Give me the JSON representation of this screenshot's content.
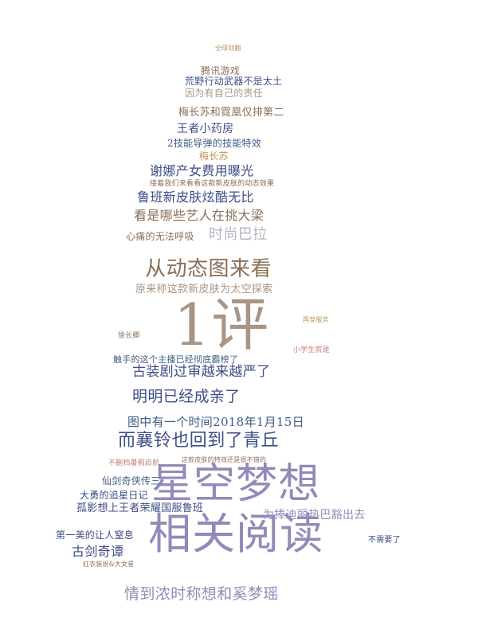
{
  "palette": {
    "gold": "#b8965a",
    "brown": "#8a6f58",
    "taupe": "#a89585",
    "navy": "#3e5c86",
    "indigo": "#3c4e86",
    "lavender": "#8f8cba",
    "rose": "#c27e7e",
    "grey": "#b7b3c2",
    "faint": "#d8d2dd"
  },
  "words": [
    "全球就翻",
    "腾讯游戏",
    "荒野行动武器不是太土",
    "因为有自己的责任",
    "梅长苏和霓凰仅排第二",
    "王者小药房",
    "2技能导弹的技能特效",
    "梅长苏",
    "谢娜产女费用曝光",
    "接着我们来看看这款新皮肤的动态效果",
    "鲁班新皮肤炫酷无比",
    "看是哪些艺人在挑大梁",
    "时尚巴拉",
    "心痛的无法呼吸",
    "从动态图来看",
    "原来称这款新皮肤为太空探索",
    "1评",
    "触手的这个主播已经彻底霸榜了",
    "古装剧过审越来越严了",
    "明明已经成亲了",
    "图中有一个时间2018年1月15日",
    "而襄铃也回到了青丘",
    "星空梦想",
    "相关阅读",
    "仙剑奇侠传三",
    "大勇的追星日记",
    "孤影想上王者荣耀国服鲁班",
    "为捧迪丽热巴豁出去",
    "第一美的让人窒息",
    "古剑奇谭",
    "情到浓时称想和奚梦瑶",
    "不需要了",
    "不删档暑假启航",
    "红衣装扮&大女星",
    "小学生就是",
    "再穿服务",
    "徐长卿",
    "这款皮肤的特效还是很不错的"
  ]
}
